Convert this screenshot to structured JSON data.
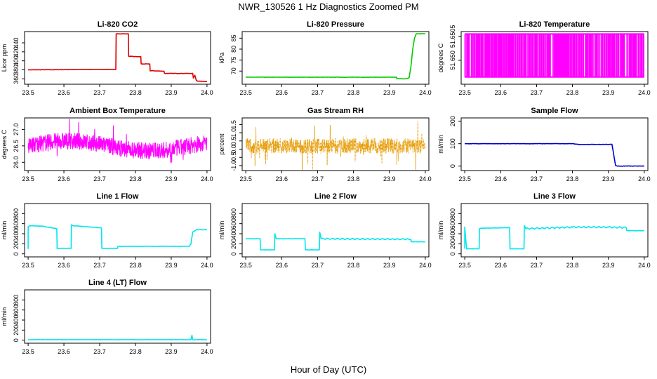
{
  "figure": {
    "title": "NWR_130526  1 Hz Diagnostics Zoomed PM",
    "xlabel": "Hour of Day (UTC)"
  },
  "chart_data": [
    {
      "id": "co2",
      "type": "line",
      "title": "Li-820 CO2",
      "ylabel": "Licor ppm",
      "xlim": [
        23.49,
        24.01
      ],
      "ylim": [
        348,
        465
      ],
      "xticks": [
        "23.5",
        "23.6",
        "23.7",
        "23.8",
        "23.9",
        "24.0"
      ],
      "yticks": [
        360,
        380,
        400,
        420,
        440
      ],
      "color": "#dd0000",
      "series": [
        {
          "x": [
            23.5,
            23.745,
            23.746,
            23.78,
            23.781,
            23.815,
            23.816,
            23.84,
            23.841,
            23.88,
            23.881,
            23.96,
            23.962,
            23.966,
            23.97,
            23.973,
            24.0
          ],
          "y": [
            380,
            381,
            460,
            460,
            410,
            409,
            393,
            393,
            378,
            377,
            372,
            372,
            362,
            368,
            357,
            355,
            354
          ]
        }
      ]
    },
    {
      "id": "pressure",
      "type": "line",
      "title": "Li-820 Pressure",
      "ylabel": "kPa",
      "xlim": [
        23.49,
        24.01
      ],
      "ylim": [
        64,
        88
      ],
      "xticks": [
        "23.5",
        "23.6",
        "23.7",
        "23.8",
        "23.9",
        "24.0"
      ],
      "yticks": [
        70,
        75,
        80,
        85
      ],
      "color": "#00cc00",
      "series": [
        {
          "x": [
            23.5,
            23.92,
            23.921,
            23.95,
            23.955,
            23.96,
            23.965,
            23.97,
            23.975,
            24.0
          ],
          "y": [
            67.2,
            67.2,
            66.5,
            66.5,
            67.0,
            72.0,
            80.0,
            85.0,
            87.0,
            87.0
          ]
        }
      ]
    },
    {
      "id": "temperature",
      "type": "line",
      "title": "Li-820 Temperature",
      "ylabel": "degrees C",
      "xlim": [
        23.49,
        24.01
      ],
      "ylim": [
        51.6495,
        51.6506
      ],
      "xticks": [
        "23.5",
        "23.6",
        "23.7",
        "23.8",
        "23.9",
        "24.0"
      ],
      "yticks": [
        51.65,
        51.6505
      ],
      "ytick_labels": [
        "51.650",
        "51.6505"
      ],
      "color": "#ff00ff",
      "series": [
        {
          "x": [
            23.5,
            24.0
          ],
          "y": [
            51.64965,
            51.65055
          ]
        }
      ]
    },
    {
      "id": "ambient",
      "type": "line",
      "title": "Ambient Box Temperature",
      "ylabel": "degrees C",
      "xlim": [
        23.49,
        24.01
      ],
      "ylim": [
        25.75,
        27.35
      ],
      "xticks": [
        "23.5",
        "23.6",
        "23.7",
        "23.8",
        "23.9",
        "24.0"
      ],
      "yticks": [
        26.0,
        26.5,
        27.0
      ],
      "ytick_labels": [
        "26.0",
        "26.5",
        "27.0"
      ],
      "color": "#ff00ff",
      "series": [
        {
          "x": [
            23.5,
            24.0
          ],
          "y": [
            26.5,
            26.5
          ]
        }
      ]
    },
    {
      "id": "rh",
      "type": "line",
      "title": "Gas Stream RH",
      "ylabel": "percent",
      "xlim": [
        23.49,
        24.01
      ],
      "ylim": [
        -1.3,
        1.9
      ],
      "xticks": [
        "23.5",
        "23.6",
        "23.7",
        "23.8",
        "23.9",
        "24.0"
      ],
      "yticks": [
        -1.0,
        -0.5,
        0.0,
        0.5,
        1.0,
        1.5
      ],
      "ytick_labels": [
        "-1.0",
        "-0.5",
        "0.0",
        "0.5",
        "1.0",
        "1.5"
      ],
      "color": "#e69a00",
      "series": [
        {
          "x": [
            23.5,
            24.0
          ],
          "y": [
            0.2,
            0.2
          ]
        }
      ]
    },
    {
      "id": "sample",
      "type": "line",
      "title": "Sample Flow",
      "ylabel": "ml/min",
      "xlim": [
        23.49,
        24.01
      ],
      "ylim": [
        -20,
        215
      ],
      "xticks": [
        "23.5",
        "23.6",
        "23.7",
        "23.8",
        "23.9",
        "24.0"
      ],
      "yticks": [
        0,
        100,
        200
      ],
      "color": "#0000cc",
      "series": [
        {
          "x": [
            23.5,
            23.8,
            23.82,
            23.91,
            23.92,
            23.925,
            24.0
          ],
          "y": [
            100,
            100,
            96,
            97,
            3,
            0,
            0
          ]
        }
      ]
    },
    {
      "id": "line1",
      "type": "line",
      "title": "Line 1 Flow",
      "ylabel": "ml/min",
      "xlim": [
        23.49,
        24.01
      ],
      "ylim": [
        -60,
        1000
      ],
      "xticks": [
        "23.5",
        "23.6",
        "23.7",
        "23.8",
        "23.9",
        "24.0"
      ],
      "yticks": [
        0,
        200,
        400,
        600,
        800
      ],
      "color": "#00e5ee",
      "series": [
        {
          "x": [
            23.5,
            23.5,
            23.505,
            23.54,
            23.58,
            23.581,
            23.62,
            23.621,
            23.625,
            23.7,
            23.705,
            23.706,
            23.75,
            23.751,
            23.95,
            23.955,
            23.96,
            23.97,
            24.0
          ],
          "y": [
            100,
            540,
            560,
            550,
            500,
            110,
            110,
            580,
            560,
            520,
            510,
            110,
            110,
            150,
            150,
            200,
            430,
            480,
            480
          ]
        }
      ]
    },
    {
      "id": "line2",
      "type": "line",
      "title": "Line 2 Flow",
      "ylabel": "ml/min",
      "xlim": [
        23.49,
        24.01
      ],
      "ylim": [
        -60,
        1000
      ],
      "xticks": [
        "23.5",
        "23.6",
        "23.7",
        "23.8",
        "23.9",
        "24.0"
      ],
      "yticks": [
        0,
        200,
        400,
        600,
        800
      ],
      "color": "#00e5ee",
      "series": [
        {
          "x": [
            23.5,
            23.54,
            23.541,
            23.58,
            23.581,
            23.585,
            23.665,
            23.666,
            23.705,
            23.706,
            23.71,
            23.96,
            23.961,
            24.0
          ],
          "y": [
            300,
            300,
            80,
            80,
            400,
            300,
            300,
            80,
            80,
            430,
            300,
            290,
            240,
            240
          ]
        }
      ]
    },
    {
      "id": "line3",
      "type": "line",
      "title": "Line 3 Flow",
      "ylabel": "ml/min",
      "xlim": [
        23.49,
        24.01
      ],
      "ylim": [
        -60,
        1000
      ],
      "xticks": [
        "23.5",
        "23.6",
        "23.7",
        "23.8",
        "23.9",
        "24.0"
      ],
      "yticks": [
        0,
        200,
        400,
        600,
        800
      ],
      "color": "#00e5ee",
      "series": [
        {
          "x": [
            23.5,
            23.5,
            23.505,
            23.54,
            23.541,
            23.545,
            23.625,
            23.626,
            23.665,
            23.666,
            23.67,
            23.8,
            23.9,
            23.95,
            23.951,
            24.0
          ],
          "y": [
            100,
            530,
            100,
            100,
            500,
            510,
            520,
            100,
            100,
            560,
            500,
            530,
            530,
            520,
            460,
            460
          ]
        }
      ]
    },
    {
      "id": "line4",
      "type": "line",
      "title": "Line 4 (LT) Flow",
      "ylabel": "ml/min",
      "xlim": [
        23.49,
        24.01
      ],
      "ylim": [
        -60,
        1000
      ],
      "xticks": [
        "23.5",
        "23.6",
        "23.7",
        "23.8",
        "23.9",
        "24.0"
      ],
      "yticks": [
        0,
        200,
        400,
        600,
        800
      ],
      "color": "#00e5ee",
      "series": [
        {
          "x": [
            23.5,
            23.955,
            23.958,
            23.96,
            23.962,
            24.0
          ],
          "y": [
            10,
            10,
            100,
            10,
            10,
            10
          ]
        }
      ]
    }
  ]
}
